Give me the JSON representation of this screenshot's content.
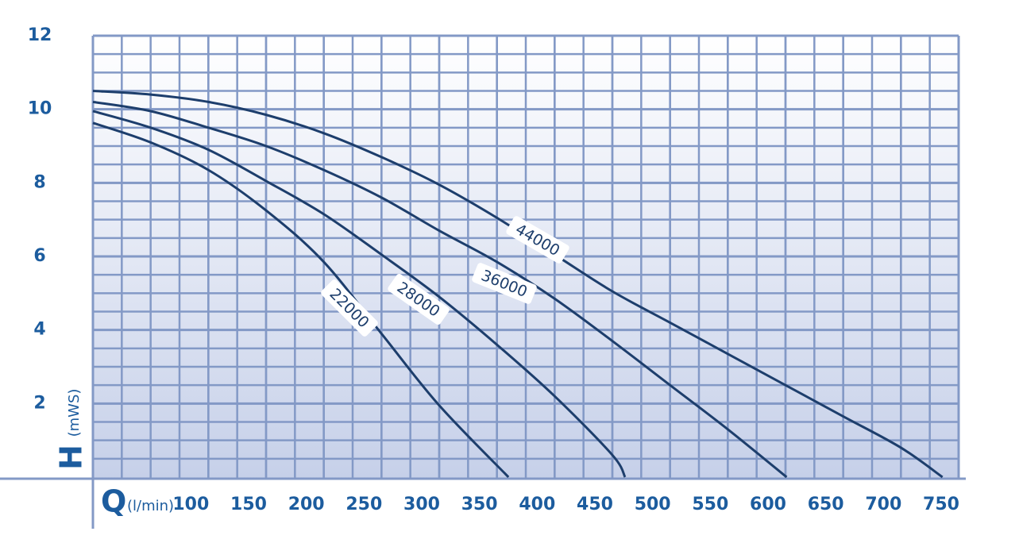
{
  "chart_data": {
    "type": "line",
    "x_label": "Q",
    "x_unit": "(l/min)",
    "y_label": "H",
    "y_unit": "(mWS)",
    "xlim": [
      0,
      750
    ],
    "ylim": [
      0,
      12
    ],
    "xticks": [
      100,
      150,
      200,
      250,
      300,
      350,
      400,
      450,
      500,
      550,
      600,
      650,
      700,
      750
    ],
    "yticks": [
      2,
      4,
      6,
      8,
      10,
      12
    ],
    "xminorticks": [
      25,
      50,
      75,
      100,
      125,
      150,
      175,
      200,
      225,
      250,
      275,
      300,
      325,
      350,
      375,
      400,
      425,
      450,
      475,
      500,
      525,
      550,
      575,
      600,
      625,
      650,
      675,
      700,
      725
    ],
    "yminorticks": [
      0.5,
      1,
      1.5,
      2,
      2.5,
      3,
      3.5,
      4,
      4.5,
      5,
      5.5,
      6,
      6.5,
      7,
      7.5,
      8,
      8.5,
      9,
      9.5,
      10,
      10.5,
      11,
      11.5
    ],
    "grid": true,
    "grid_color": "#8399c6",
    "series": [
      {
        "name": "44000",
        "color": "#1d3e6c",
        "x": [
          0,
          50,
          100,
          150,
          200,
          250,
          300,
          350,
          400,
          450,
          500,
          550,
          600,
          650,
          700,
          736
        ],
        "values": [
          10.5,
          10.4,
          10.2,
          9.85,
          9.35,
          8.7,
          7.95,
          7.05,
          6.05,
          5.05,
          4.2,
          3.35,
          2.5,
          1.65,
          0.8,
          0
        ]
      },
      {
        "name": "36000",
        "color": "#1d3e6c",
        "x": [
          0,
          50,
          100,
          150,
          200,
          250,
          300,
          350,
          400,
          450,
          500,
          550,
          601
        ],
        "values": [
          10.2,
          9.95,
          9.5,
          9.0,
          8.35,
          7.6,
          6.7,
          5.85,
          4.85,
          3.7,
          2.5,
          1.3,
          0
        ]
      },
      {
        "name": "28000",
        "color": "#1d3e6c",
        "x": [
          0,
          50,
          100,
          150,
          200,
          250,
          300,
          350,
          400,
          450,
          461
        ],
        "values": [
          9.95,
          9.5,
          8.9,
          8.05,
          7.15,
          6.05,
          4.9,
          3.6,
          2.2,
          0.6,
          0
        ]
      },
      {
        "name": "22000",
        "color": "#1d3e6c",
        "x": [
          0,
          50,
          100,
          150,
          200,
          250,
          300,
          360
        ],
        "values": [
          9.63,
          9.1,
          8.35,
          7.25,
          5.85,
          3.9,
          1.95,
          0
        ]
      }
    ]
  }
}
